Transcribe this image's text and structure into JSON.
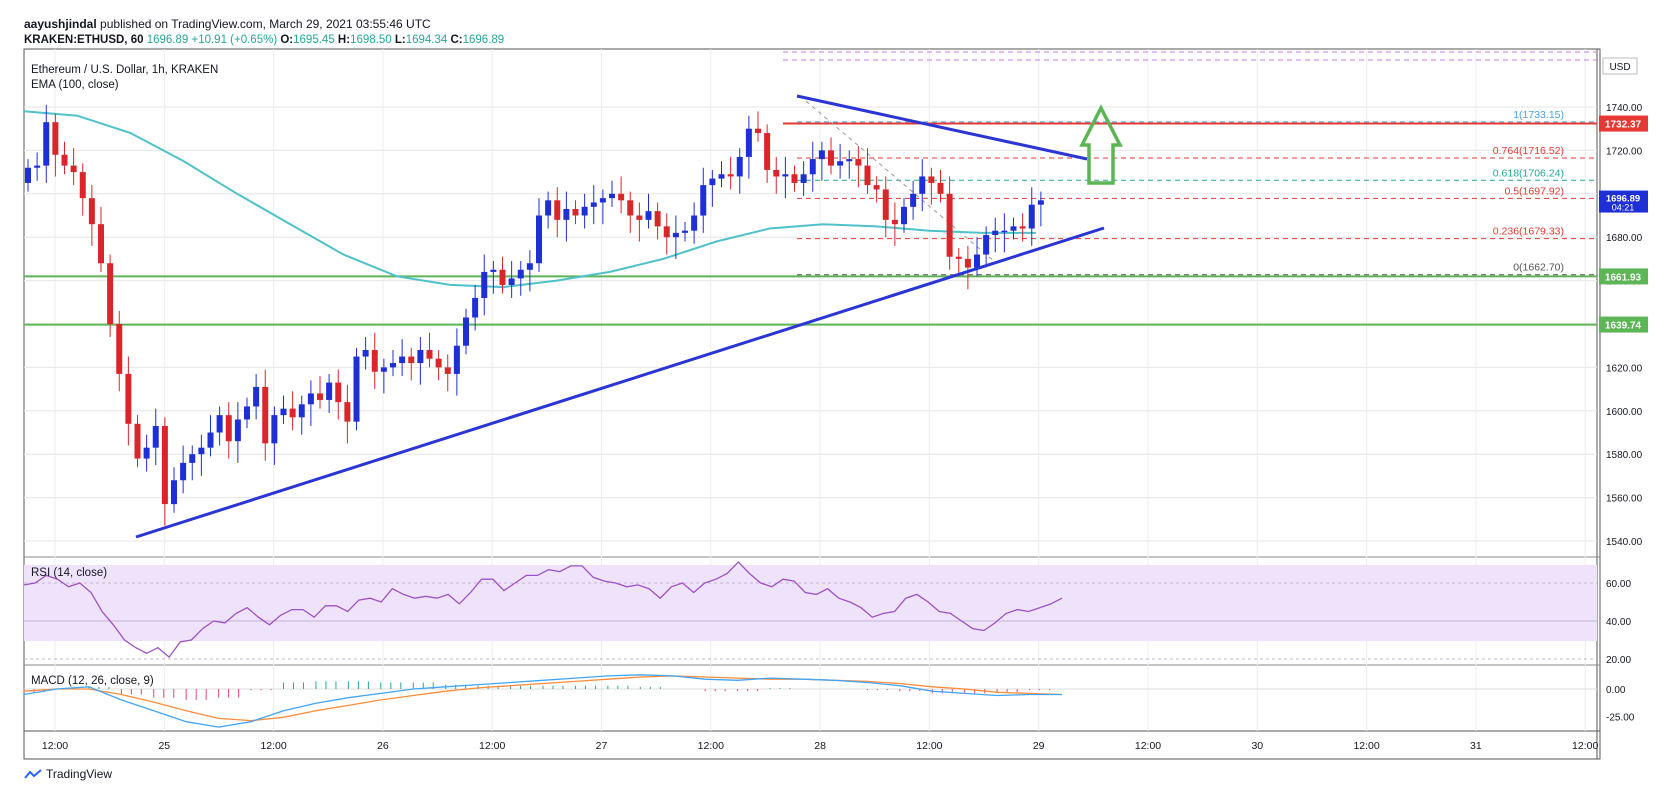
{
  "header": {
    "publisher": "aayushjindal",
    "published_text": "published on TradingView.com, March 29, 2021 03:55:46 UTC",
    "symbol_line": "KRAKEN:ETHUSD, 60",
    "last": "1696.89",
    "change": "+10.91 (+0.65%)",
    "o_label": "O:",
    "o": "1695.45",
    "h_label": "H:",
    "h": "1698.50",
    "l_label": "L:",
    "l": "1694.34",
    "c_label": "C:",
    "c": "1696.89"
  },
  "main_legend": {
    "title": "Ethereum / U.S. Dollar, 1h, KRAKEN",
    "ema": "EMA (100, close)"
  },
  "currency": "USD",
  "rsi_legend": "RSI (14, close)",
  "macd_legend": "MACD (12, 26, close, 9)",
  "brand": "TradingView",
  "colors": {
    "up": "#1e2fd6",
    "down": "#d8262b",
    "ema": "#4fc1c9",
    "trend": "#2a35d4",
    "support": "#5db556",
    "resistance": "#e53935",
    "arrow": "#5ab552",
    "rsi": "#9c52c4",
    "macd": "#42a5f5",
    "signal": "#ff8c3a"
  },
  "chart_data": [
    {
      "type": "candlestick",
      "title": "Ethereum / U.S. Dollar, 1h, KRAKEN",
      "x_ticks": [
        "12:00",
        "25",
        "12:00",
        "26",
        "12:00",
        "27",
        "12:00",
        "28",
        "12:00",
        "29",
        "12:00",
        "30",
        "12:00",
        "31",
        "12:00"
      ],
      "ylim": [
        1530,
        1750
      ],
      "y_ticks": [
        1540,
        1560,
        1580,
        1600,
        1620,
        1640,
        1660,
        1680,
        1700,
        1720,
        1740
      ],
      "close": [
        1712,
        1713,
        1733,
        1718,
        1713,
        1710,
        1698,
        1686,
        1668,
        1640,
        1617,
        1594,
        1578,
        1583,
        1593,
        1557,
        1568,
        1576,
        1580,
        1583,
        1590,
        1598,
        1586,
        1596,
        1602,
        1611,
        1585,
        1598,
        1601,
        1597,
        1603,
        1608,
        1605,
        1613,
        1604,
        1595,
        1625,
        1628,
        1618,
        1620,
        1622,
        1625,
        1622,
        1628,
        1624,
        1620,
        1617,
        1630,
        1643,
        1652,
        1664,
        1665,
        1658,
        1661,
        1665,
        1668,
        1690,
        1697,
        1688,
        1693,
        1690,
        1694,
        1696,
        1698,
        1700,
        1697,
        1690,
        1688,
        1692,
        1685,
        1680,
        1682,
        1683,
        1690,
        1704,
        1707,
        1709,
        1708,
        1717,
        1730,
        1728,
        1711,
        1708,
        1709,
        1705,
        1709,
        1716,
        1720,
        1713,
        1715,
        1716,
        1713,
        1704,
        1702,
        1688,
        1686,
        1694,
        1700,
        1708,
        1705,
        1700,
        1671,
        1670,
        1666,
        1672,
        1681,
        1683,
        1683,
        1685,
        1684,
        1695,
        1697
      ],
      "ema100_approx": [
        1738,
        1736,
        1728,
        1715,
        1700,
        1686,
        1672,
        1662,
        1658,
        1657,
        1660,
        1664,
        1670,
        1678,
        1684,
        1686,
        1685,
        1683,
        1682,
        1682
      ],
      "horizontal_levels": [
        {
          "label": "1732.37",
          "value": 1732.37,
          "kind": "resistance"
        },
        {
          "label": "1661.93",
          "value": 1661.93,
          "kind": "support"
        },
        {
          "label": "1639.74",
          "value": 1639.74,
          "kind": "support"
        }
      ],
      "fibonacci": [
        {
          "label": "1(1733.15)",
          "value": 1733.15
        },
        {
          "label": "0.764(1716.52)",
          "value": 1716.52
        },
        {
          "label": "0.618(1706.24)",
          "value": 1706.24
        },
        {
          "label": "0.5(1697.92)",
          "value": 1697.92
        },
        {
          "label": "0.236(1679.33)",
          "value": 1679.33
        },
        {
          "label": "0(1662.70)",
          "value": 1662.7
        }
      ],
      "last_price": {
        "label": "1696.89",
        "countdown": "04:21"
      }
    },
    {
      "type": "line",
      "title": "RSI (14, close)",
      "ylim": [
        10,
        75
      ],
      "y_ticks": [
        "20.00",
        "40.00",
        "60.00"
      ],
      "band": [
        30,
        70
      ],
      "values": [
        59,
        60,
        64,
        62,
        58,
        60,
        55,
        45,
        38,
        30,
        26,
        23,
        26,
        21,
        29,
        30,
        36,
        40,
        39,
        44,
        47,
        42,
        38,
        43,
        46,
        46,
        42,
        48,
        48,
        45,
        51,
        52,
        50,
        57,
        54,
        52,
        53,
        52,
        54,
        49,
        55,
        62,
        62,
        56,
        60,
        64,
        64,
        67,
        66,
        69,
        69,
        63,
        61,
        60,
        58,
        59,
        57,
        52,
        58,
        60,
        55,
        60,
        62,
        65,
        71,
        65,
        60,
        58,
        62,
        61,
        55,
        54,
        57,
        52,
        50,
        47,
        42,
        44,
        45,
        52,
        54,
        50,
        45,
        44,
        40,
        36,
        35,
        39,
        44,
        46,
        45,
        47,
        49,
        52
      ]
    },
    {
      "type": "line",
      "title": "MACD (12, 26, close, 9)",
      "ylim": [
        -38,
        22
      ],
      "y_ticks": [
        "0.00",
        "-25.00"
      ],
      "macd": [
        -5,
        0,
        2,
        -10,
        -20,
        -30,
        -35,
        -30,
        -20,
        -13,
        -8,
        -4,
        0,
        2,
        4,
        6,
        8,
        10,
        12,
        13,
        12,
        9,
        8,
        10,
        9,
        8,
        6,
        3,
        -2,
        -4,
        -6,
        -5,
        -5
      ],
      "signal": [
        -2,
        0,
        0,
        -5,
        -12,
        -20,
        -27,
        -29,
        -26,
        -20,
        -15,
        -10,
        -6,
        -2,
        1,
        3,
        5,
        7,
        9,
        11,
        12,
        11,
        10,
        9,
        9,
        8,
        7,
        5,
        2,
        0,
        -3,
        -4,
        -5
      ]
    }
  ]
}
